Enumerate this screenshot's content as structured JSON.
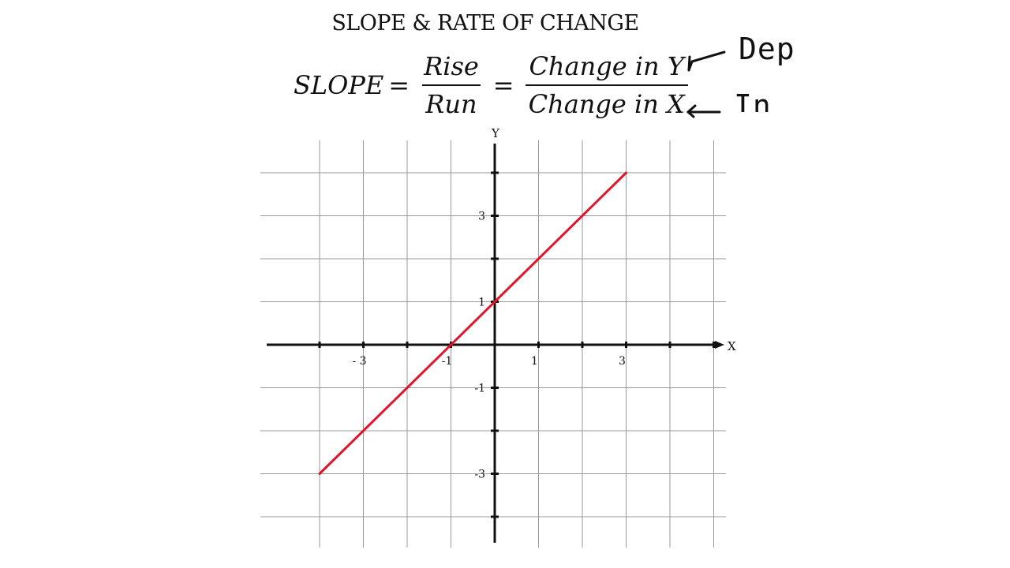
{
  "title": "SLOPE & RATE OF CHANGE",
  "formula": {
    "lhs": "SLOPE",
    "equals": "=",
    "frac1_num": "Rise",
    "frac1_den": "Run",
    "frac2_num": "Change in Y",
    "frac2_den": "Change in X"
  },
  "annotations": {
    "dep": "Dep",
    "ind": "In",
    "arrow_color": "#111111"
  },
  "chart_data": {
    "type": "line",
    "title": "",
    "xlabel": "X",
    "ylabel": "Y",
    "xlim": [
      -4,
      5
    ],
    "ylim": [
      -4,
      4
    ],
    "x_tick_labels": [
      {
        "x": -3,
        "label": "- 3"
      },
      {
        "x": -1,
        "label": "-1"
      },
      {
        "x": 1,
        "label": "1"
      },
      {
        "x": 3,
        "label": "3"
      }
    ],
    "y_tick_labels": [
      {
        "y": 3,
        "label": "3"
      },
      {
        "y": 1,
        "label": "1"
      },
      {
        "y": -1,
        "label": "-1"
      },
      {
        "y": -3,
        "label": "-3"
      }
    ],
    "grid": true,
    "series": [
      {
        "color": "#e0162b",
        "points": [
          [
            -4,
            -3
          ],
          [
            3,
            4
          ]
        ]
      }
    ]
  }
}
